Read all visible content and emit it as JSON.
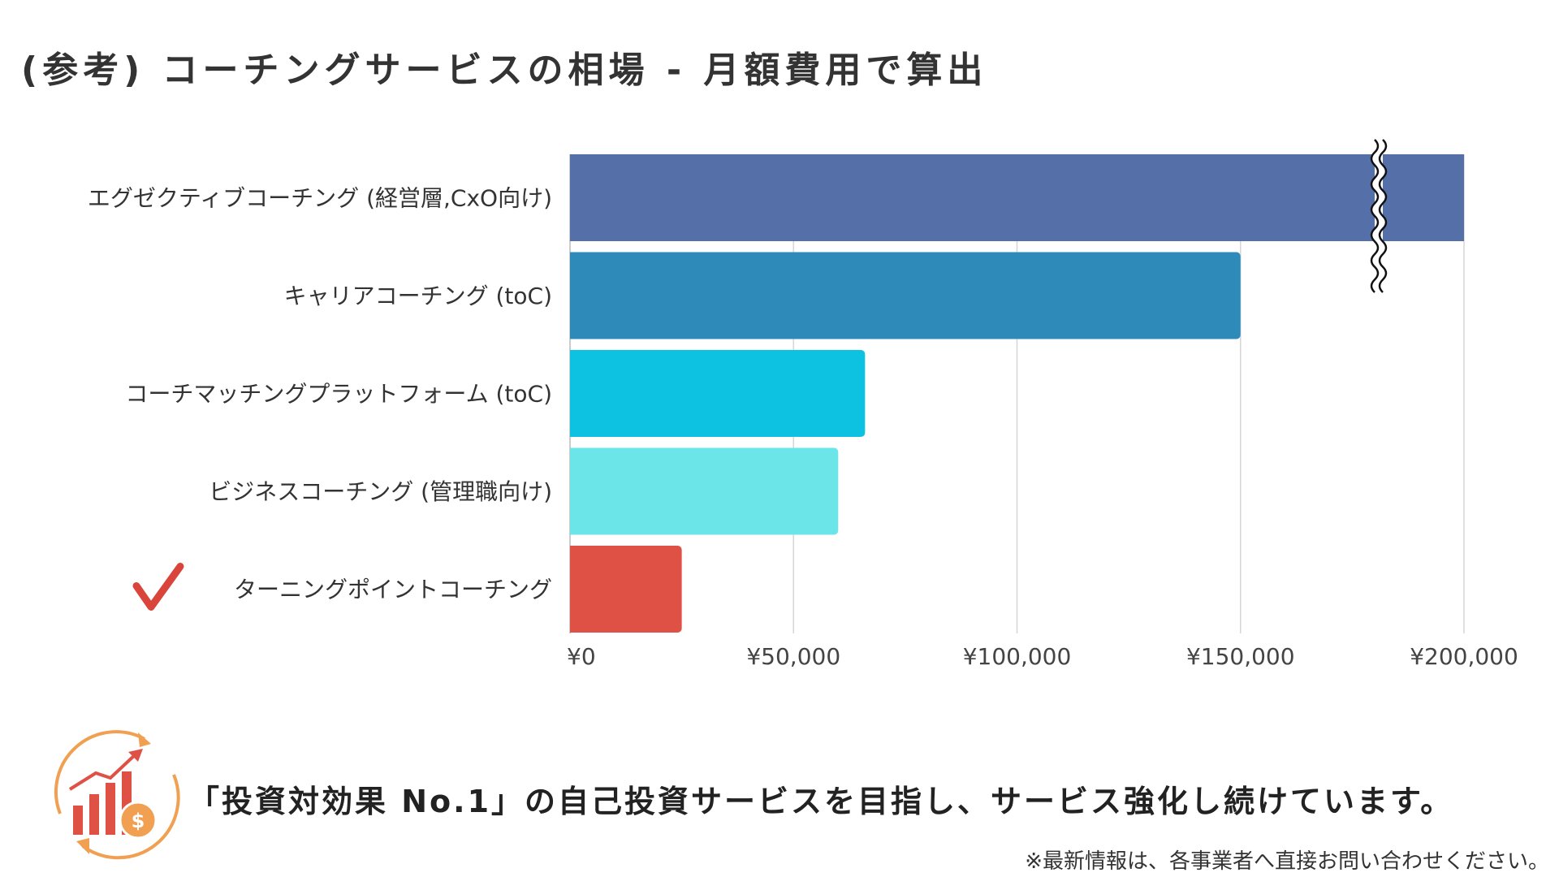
{
  "title": "(参考) コーチングサービスの相場 - 月額費用で算出",
  "chart_data": {
    "type": "bar",
    "orientation": "horizontal",
    "categories": [
      "エグゼクティブコーチング (経営層,CxO向け)",
      "キャリアコーチング (toC)",
      "コーチマッチングプラットフォーム (toC)",
      "ビジネスコーチング (管理職向け)",
      "ターニングポイントコーチング"
    ],
    "values": [
      200000,
      150000,
      66000,
      60000,
      25000
    ],
    "colors": [
      "#5570a9",
      "#2e8ab8",
      "#0dc1e0",
      "#6ce5e8",
      "#e05145"
    ],
    "xlim": [
      0,
      200000
    ],
    "x_ticks": [
      "¥0",
      "¥50,000",
      "¥100,000",
      "¥150,000",
      "¥200,000"
    ],
    "x_tick_values": [
      0,
      50000,
      100000,
      150000,
      200000
    ],
    "grid": true,
    "axis_break_on_first_bar": true,
    "highlighted_category_index": 4
  },
  "marker_icon": "checkmark-icon",
  "footer_icon": "roi-growth-chart-icon",
  "footer_message": "「投資対効果 No.1」の自己投資サービスを目指し、サービス強化し続けています。",
  "footnote": "※最新情報は、各事業者へ直接お問い合わせください。",
  "colors": {
    "check": "#d9443b",
    "icon_orange": "#f0a050",
    "icon_red": "#e05145"
  }
}
